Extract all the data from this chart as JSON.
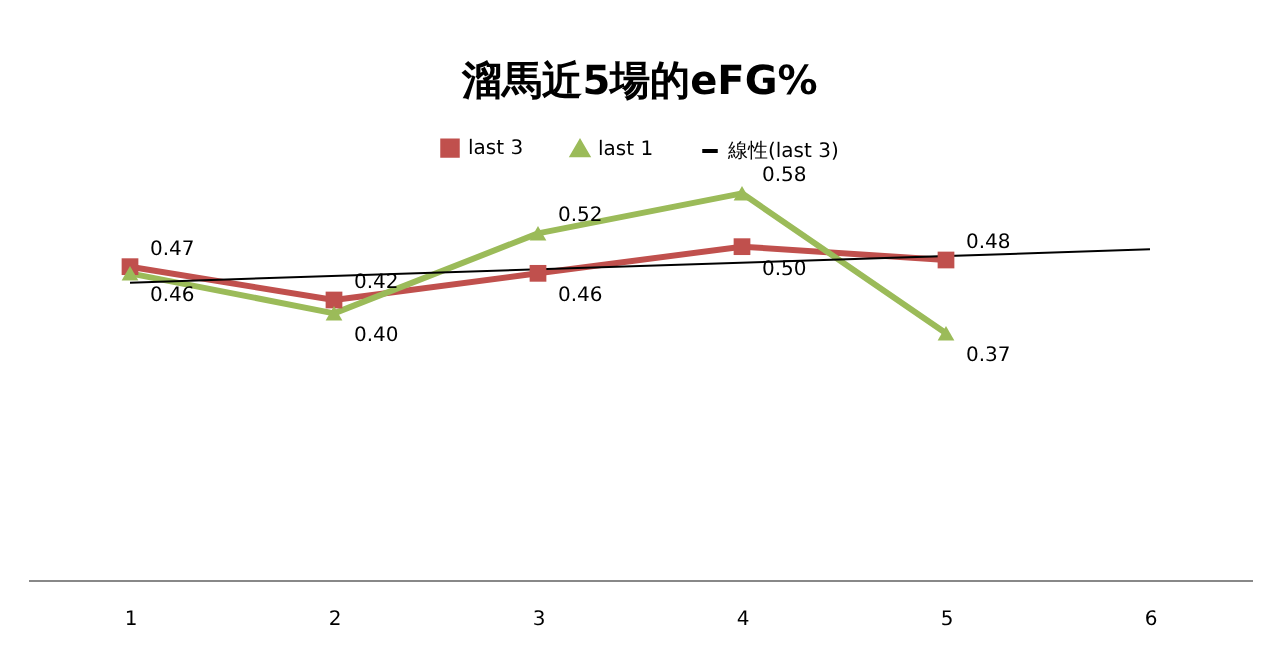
{
  "chart_data": {
    "type": "line",
    "title": "溜馬近5場的eFG%",
    "categories": [
      "1",
      "2",
      "3",
      "4",
      "5",
      "6"
    ],
    "series": [
      {
        "name": "last 3",
        "color": "#c0504d",
        "marker": "square",
        "values": [
          0.47,
          0.42,
          0.46,
          0.5,
          0.48,
          null
        ],
        "value_labels": [
          "0.47",
          "0.42",
          "0.46",
          "0.50",
          "0.48",
          null
        ]
      },
      {
        "name": "last 1",
        "color": "#9bbb59",
        "marker": "triangle",
        "values": [
          0.46,
          0.4,
          0.52,
          0.58,
          0.37,
          null
        ],
        "value_labels": [
          "0.46",
          "0.40",
          "0.52",
          "0.58",
          "0.37",
          null
        ]
      },
      {
        "name": "線性(last 3)",
        "color": "#000000",
        "marker": "none",
        "x": [
          "1",
          "6"
        ],
        "values": [
          0.446,
          0.496
        ]
      }
    ],
    "tick_labels": "x",
    "grid": false,
    "legend": "top",
    "line_style": "solid"
  }
}
